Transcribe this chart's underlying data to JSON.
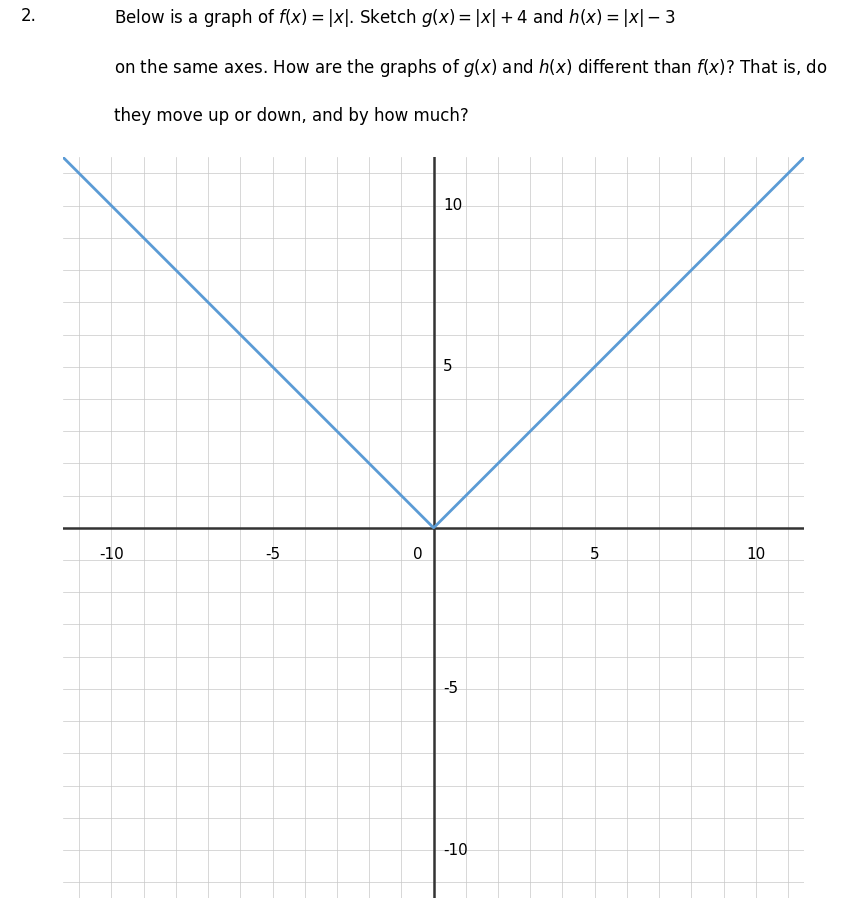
{
  "xlim": [
    -11.5,
    11.5
  ],
  "ylim": [
    -11.5,
    11.5
  ],
  "xticks": [
    -10,
    -5,
    0,
    5,
    10
  ],
  "yticks": [
    -10,
    -5,
    5,
    10
  ],
  "grid_color": "#c8c8c8",
  "axis_color": "#333333",
  "axis_linewidth": 1.8,
  "curve_color": "#5b9bd5",
  "curve_linewidth": 2.0,
  "background_color": "#ffffff",
  "tick_label_fontsize": 11,
  "fig_width": 8.42,
  "fig_height": 9.18,
  "number_label": "2.",
  "problem_line1": "Below is a graph of $f(x) = |x|$. Sketch $g(x) = |x| + 4$ and $h(x) = |x| - 3$",
  "problem_line2": "on the same axes. How are the graphs of $g(x)$ and $h(x)$ different than $f(x)$? That is, do",
  "problem_line3": "they move up or down, and by how much?",
  "text_fontsize": 12,
  "number_fontsize": 12
}
